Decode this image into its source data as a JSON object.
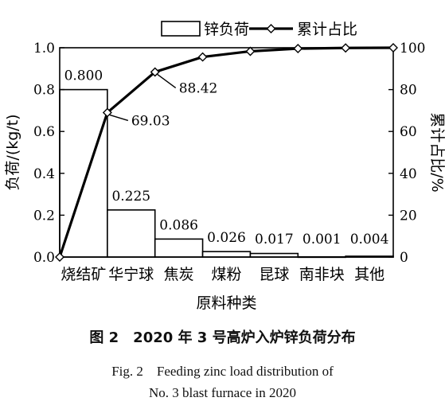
{
  "chart_data": {
    "type": "bar",
    "categories": [
      "烧结矿",
      "华宁球",
      "焦炭",
      "煤粉",
      "昆球",
      "南非块",
      "其他"
    ],
    "series": [
      {
        "name": "锌负荷",
        "kind": "bar",
        "axis": "left",
        "values": [
          0.8,
          0.225,
          0.086,
          0.026,
          0.017,
          0.001,
          0.004
        ],
        "value_labels": [
          "0.800",
          "0.225",
          "0.086",
          "0.026",
          "0.017",
          "0.001",
          "0.004"
        ]
      },
      {
        "name": "累计占比",
        "kind": "line",
        "axis": "right",
        "marker": "diamond",
        "x": [
          "",
          "烧结矿",
          "华宁球",
          "焦炭",
          "煤粉",
          "昆球",
          "南非块",
          "其他"
        ],
        "values": [
          0,
          69.03,
          88.42,
          95.6,
          98.3,
          99.6,
          99.9,
          100
        ],
        "annotations": [
          {
            "index": 1,
            "text": "69.03"
          },
          {
            "index": 2,
            "text": "88.42"
          }
        ]
      }
    ],
    "xlabel": "原料种类",
    "ylabel": "负荷/(kg/t)",
    "y2label": "累计占比/%",
    "ylim": [
      0,
      1.0
    ],
    "y2lim": [
      0,
      100
    ],
    "yticks": [
      "0.0",
      "0.2",
      "0.4",
      "0.6",
      "0.8",
      "1.0"
    ],
    "y2ticks": [
      "0",
      "20",
      "40",
      "60",
      "80",
      "100"
    ],
    "legend_placement": "top",
    "grid": false
  },
  "caption": {
    "cn": "图 2　2020 年 3 号高炉入炉锌负荷分布",
    "en_line1": "Fig. 2　Feeding zinc load distribution of",
    "en_line2": "No. 3 blast furnace in 2020"
  }
}
